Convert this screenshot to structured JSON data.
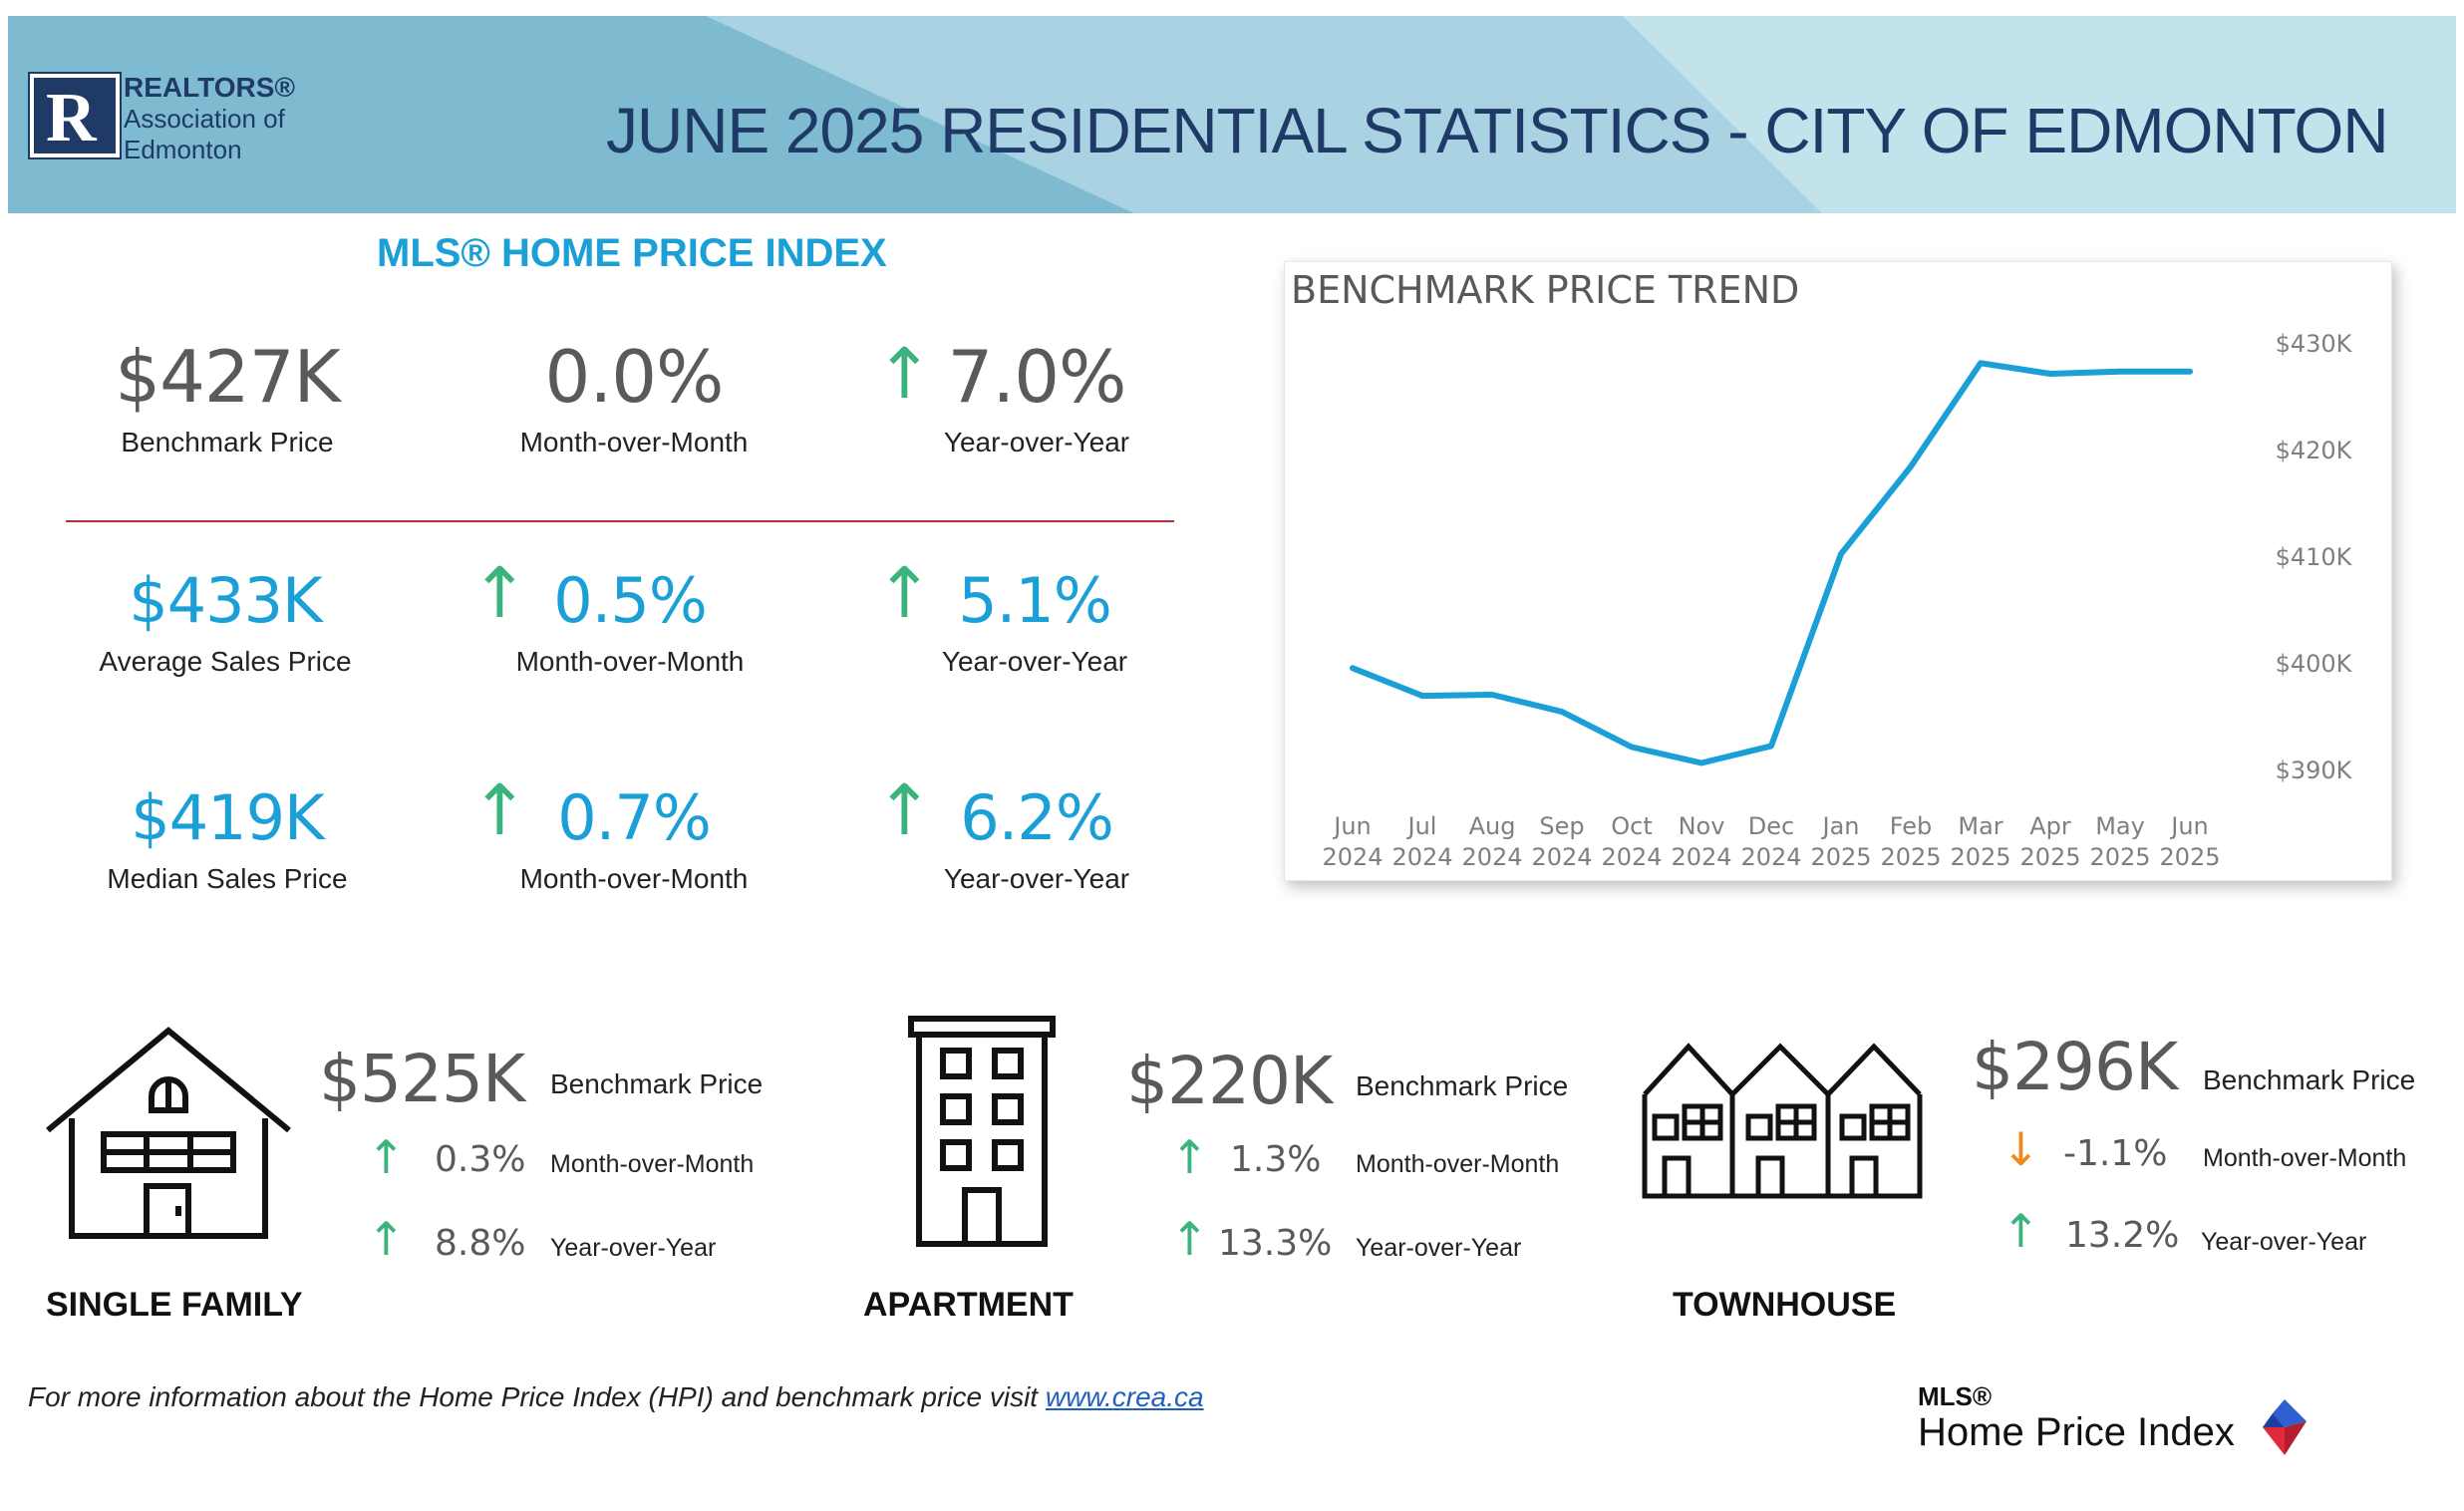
{
  "header": {
    "org_line1": "REALTORS®",
    "org_line2": "Association of",
    "org_line3": "Edmonton",
    "logo_letter": "R",
    "title": "JUNE 2025 RESIDENTIAL STATISTICS - CITY OF EDMONTON"
  },
  "hpi": {
    "heading": "MLS® HOME PRICE INDEX",
    "benchmark": {
      "value": "$427K",
      "label": "Benchmark Price"
    },
    "benchmark_mom": {
      "value": "0.0%",
      "label": "Month-over-Month"
    },
    "benchmark_yoy": {
      "value": "7.0%",
      "label": "Year-over-Year",
      "direction": "up"
    },
    "average": {
      "value": "$433K",
      "label": "Average Sales Price"
    },
    "average_mom": {
      "value": "0.5%",
      "label": "Month-over-Month",
      "direction": "up"
    },
    "average_yoy": {
      "value": "5.1%",
      "label": "Year-over-Year",
      "direction": "up"
    },
    "median": {
      "value": "$419K",
      "label": "Median Sales Price"
    },
    "median_mom": {
      "value": "0.7%",
      "label": "Month-over-Month",
      "direction": "up"
    },
    "median_yoy": {
      "value": "6.2%",
      "label": "Year-over-Year",
      "direction": "up"
    }
  },
  "chart_data": {
    "type": "line",
    "title": "BENCHMARK PRICE TREND",
    "x": [
      "Jun 2024",
      "Jul 2024",
      "Aug 2024",
      "Sep 2024",
      "Oct 2024",
      "Nov 2024",
      "Dec 2024",
      "Jan 2025",
      "Feb 2025",
      "Mar 2025",
      "Apr 2025",
      "May 2025",
      "Jun 2025"
    ],
    "x_tick_lines": [
      [
        "Jun",
        "2024"
      ],
      [
        "Jul",
        "2024"
      ],
      [
        "Aug",
        "2024"
      ],
      [
        "Sep",
        "2024"
      ],
      [
        "Oct",
        "2024"
      ],
      [
        "Nov",
        "2024"
      ],
      [
        "Dec",
        "2024"
      ],
      [
        "Jan",
        "2025"
      ],
      [
        "Feb",
        "2025"
      ],
      [
        "Mar",
        "2025"
      ],
      [
        "Apr",
        "2025"
      ],
      [
        "May",
        "2025"
      ],
      [
        "Jun",
        "2025"
      ]
    ],
    "series": [
      {
        "values": [
          399600,
          397000,
          397100,
          395500,
          392200,
          390700,
          392300,
          410300,
          418500,
          428200,
          427200,
          427400,
          427400
        ]
      }
    ],
    "yticks": [
      390000,
      400000,
      410000,
      420000,
      430000
    ],
    "ytick_labels": [
      "$390K",
      "$400K",
      "$410K",
      "$420K",
      "$430K"
    ],
    "ylim": [
      390000,
      430000
    ],
    "y_axis_side": "right",
    "grid": false,
    "line_color": "#1a9fd6"
  },
  "property_types": [
    {
      "name": "SINGLE FAMILY",
      "price": "$525K",
      "price_label": "Benchmark Price",
      "mom": "0.3%",
      "mom_label": "Month-over-Month",
      "mom_direction": "up",
      "yoy": "8.8%",
      "yoy_label": "Year-over-Year",
      "yoy_direction": "up",
      "icon": "house-icon"
    },
    {
      "name": "APARTMENT",
      "price": "$220K",
      "price_label": "Benchmark Price",
      "mom": "1.3%",
      "mom_label": "Month-over-Month",
      "mom_direction": "up",
      "yoy": "13.3%",
      "yoy_label": "Year-over-Year",
      "yoy_direction": "up",
      "icon": "apartment-building-icon"
    },
    {
      "name": "TOWNHOUSE",
      "price": "$296K",
      "price_label": "Benchmark Price",
      "mom": "-1.1%",
      "mom_label": "Month-over-Month",
      "mom_direction": "down",
      "yoy": "13.2%",
      "yoy_label": "Year-over-Year",
      "yoy_direction": "up",
      "icon": "townhouse-icon"
    }
  ],
  "footer": {
    "note": "For more information about the Home Price Index (HPI) and benchmark price visit ",
    "link": "www.crea.ca",
    "logo_line1": "MLS®",
    "logo_line2": "Home Price Index"
  },
  "colors": {
    "accent_blue": "#1a9fd6",
    "navy": "#1f3a66",
    "up_green": "#3bb37c",
    "down_orange": "#f08a1e",
    "divider_red": "#b0303a"
  }
}
